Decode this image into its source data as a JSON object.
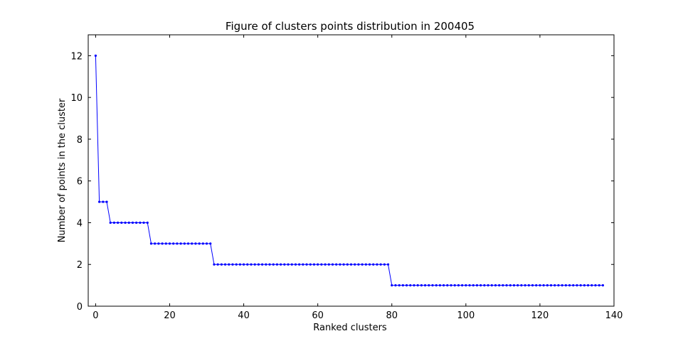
{
  "chart_data": {
    "type": "line",
    "title": "Figure of clusters points distribution in 200405",
    "xlabel": "Ranked clusters",
    "ylabel": "Number of points in the cluster",
    "xlim": [
      -2,
      140
    ],
    "ylim": [
      0,
      13
    ],
    "xticks": [
      0,
      20,
      40,
      60,
      80,
      100,
      120,
      140
    ],
    "yticks": [
      0,
      2,
      4,
      6,
      8,
      10,
      12
    ],
    "xtick_labels": [
      "0",
      "20",
      "40",
      "60",
      "80",
      "100",
      "120",
      "140"
    ],
    "ytick_labels": [
      "0",
      "2",
      "4",
      "6",
      "8",
      "10",
      "12"
    ],
    "grid": false,
    "series": [
      {
        "color": "#0000ff",
        "marker": "dot",
        "x": [
          0,
          1,
          2,
          3,
          4,
          5,
          6,
          7,
          8,
          9,
          10,
          11,
          12,
          13,
          14,
          15,
          16,
          17,
          18,
          19,
          20,
          21,
          22,
          23,
          24,
          25,
          26,
          27,
          28,
          29,
          30,
          31,
          32,
          33,
          34,
          35,
          36,
          37,
          38,
          39,
          40,
          41,
          42,
          43,
          44,
          45,
          46,
          47,
          48,
          49,
          50,
          51,
          52,
          53,
          54,
          55,
          56,
          57,
          58,
          59,
          60,
          61,
          62,
          63,
          64,
          65,
          66,
          67,
          68,
          69,
          70,
          71,
          72,
          73,
          74,
          75,
          76,
          77,
          78,
          79,
          80,
          81,
          82,
          83,
          84,
          85,
          86,
          87,
          88,
          89,
          90,
          91,
          92,
          93,
          94,
          95,
          96,
          97,
          98,
          99,
          100,
          101,
          102,
          103,
          104,
          105,
          106,
          107,
          108,
          109,
          110,
          111,
          112,
          113,
          114,
          115,
          116,
          117,
          118,
          119,
          120,
          121,
          122,
          123,
          124,
          125,
          126,
          127,
          128,
          129,
          130,
          131,
          132,
          133,
          134,
          135,
          136,
          137
        ],
        "y": [
          12,
          5,
          5,
          5,
          4,
          4,
          4,
          4,
          4,
          4,
          4,
          4,
          4,
          4,
          4,
          3,
          3,
          3,
          3,
          3,
          3,
          3,
          3,
          3,
          3,
          3,
          3,
          3,
          3,
          3,
          3,
          3,
          2,
          2,
          2,
          2,
          2,
          2,
          2,
          2,
          2,
          2,
          2,
          2,
          2,
          2,
          2,
          2,
          2,
          2,
          2,
          2,
          2,
          2,
          2,
          2,
          2,
          2,
          2,
          2,
          2,
          2,
          2,
          2,
          2,
          2,
          2,
          2,
          2,
          2,
          2,
          2,
          2,
          2,
          2,
          2,
          2,
          2,
          2,
          2,
          1,
          1,
          1,
          1,
          1,
          1,
          1,
          1,
          1,
          1,
          1,
          1,
          1,
          1,
          1,
          1,
          1,
          1,
          1,
          1,
          1,
          1,
          1,
          1,
          1,
          1,
          1,
          1,
          1,
          1,
          1,
          1,
          1,
          1,
          1,
          1,
          1,
          1,
          1,
          1,
          1,
          1,
          1,
          1,
          1,
          1,
          1,
          1,
          1,
          1,
          1,
          1,
          1,
          1,
          1,
          1,
          1,
          1
        ]
      }
    ]
  }
}
